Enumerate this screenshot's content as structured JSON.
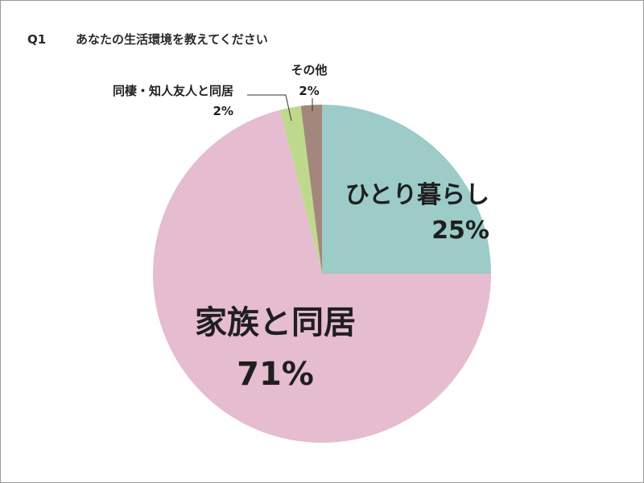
{
  "question": {
    "number": "Q1",
    "text": "あなたの生活環境を教えてください"
  },
  "chart_data": {
    "type": "pie",
    "title": "あなたの生活環境を教えてください",
    "start_angle": "12 o'clock",
    "direction": "clockwise",
    "slices": [
      {
        "label": "ひとり暮らし",
        "value": 25,
        "value_label": "25%",
        "color": "#9ccbc8"
      },
      {
        "label": "家族と同居",
        "value": 71,
        "value_label": "71%",
        "color": "#e6bcd1"
      },
      {
        "label": "同棲・知人友人と同居",
        "value": 2,
        "value_label": "2%",
        "color": "#bfd98c"
      },
      {
        "label": "その他",
        "value": 2,
        "value_label": "2%",
        "color": "#a3867c"
      }
    ]
  }
}
